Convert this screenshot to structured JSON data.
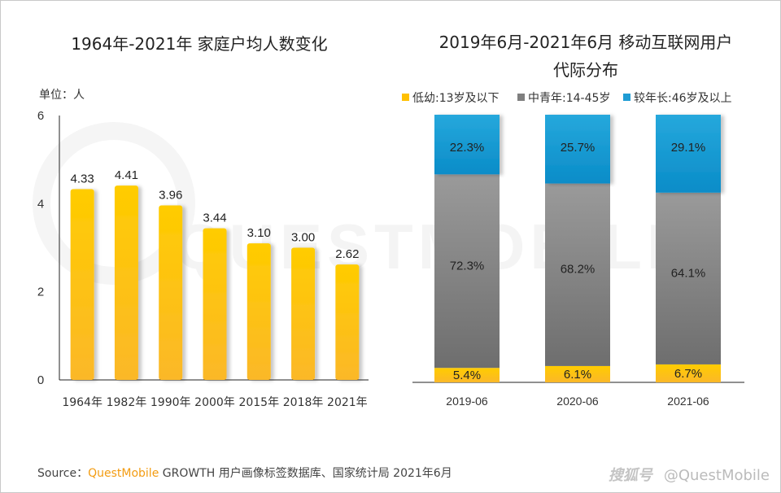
{
  "colors": {
    "bar_yellow_top": "#FFCC00",
    "bar_yellow_bottom": "#FBB829",
    "segment_blue": "#22A3D8",
    "segment_gray_light": "#9A9A9A",
    "segment_gray_dark": "#6E6E6E",
    "brand_orange": "#F39C12"
  },
  "watermark": "QUESTMOBILE",
  "footer": {
    "source_label": "Source：",
    "source_brand": "QuestMobile",
    "source_text": " GROWTH 用户画像标签数据库、国家统计局 2021年6月",
    "credit_logo": "搜狐号",
    "credit_text": "@QuestMobile"
  },
  "chart_data": [
    {
      "type": "bar",
      "title": "1964年-2021年 家庭户均人数变化",
      "unit_label": "单位：人",
      "xlabel": "",
      "ylabel": "",
      "categories": [
        "1964年",
        "1982年",
        "1990年",
        "2000年",
        "2015年",
        "2018年",
        "2021年"
      ],
      "values": [
        4.33,
        4.41,
        3.96,
        3.44,
        3.1,
        3.0,
        2.62
      ],
      "value_labels": [
        "4.33",
        "4.41",
        "3.96",
        "3.44",
        "3.10",
        "3.00",
        "2.62"
      ],
      "ylim": [
        0,
        6
      ],
      "yticks": [
        0,
        2,
        4,
        6
      ],
      "grid": false,
      "legend": "none"
    },
    {
      "type": "bar",
      "stacked": true,
      "percent": true,
      "title": "2019年6月-2021年6月 移动互联网用户代际分布",
      "title_lines": [
        "2019年6月-2021年6月 移动互联网用户",
        "代际分布"
      ],
      "categories": [
        "2019-06",
        "2020-06",
        "2021-06"
      ],
      "series": [
        {
          "name": "低幼:13岁及以下",
          "values": [
            5.4,
            6.1,
            6.7
          ],
          "labels": [
            "5.4%",
            "6.1%",
            "6.7%"
          ]
        },
        {
          "name": "中青年:14-45岁",
          "values": [
            72.3,
            68.2,
            64.1
          ],
          "labels": [
            "72.3%",
            "68.2%",
            "64.1%"
          ]
        },
        {
          "name": "较年长:46岁及以上",
          "values": [
            22.3,
            25.7,
            29.1
          ],
          "labels": [
            "22.3%",
            "25.7%",
            "29.1%"
          ]
        }
      ],
      "ylim": [
        0,
        100
      ],
      "grid": false,
      "legend": "top"
    }
  ]
}
